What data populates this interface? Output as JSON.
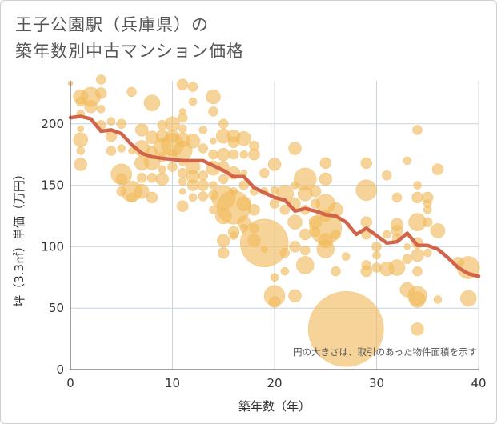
{
  "title": {
    "line1": "王子公園駅（兵庫県）の",
    "line2": "築年数別中古マンション価格"
  },
  "note": "円の大きさは、取引のあった物件面積を示す",
  "colors": {
    "bubble": "#f1b95a",
    "line": "#d2644a",
    "grid": "#c8d4de",
    "axis_text": "#333333"
  },
  "chart_data": {
    "type": "scatter",
    "xlabel": "築年数（年）",
    "ylabel": "坪（3.3㎡）単価（万円）",
    "xlim": [
      0,
      40
    ],
    "ylim": [
      0,
      235
    ],
    "xticks": [
      0,
      10,
      20,
      30,
      40
    ],
    "yticks": [
      0,
      50,
      100,
      150,
      200
    ],
    "grid": true,
    "trend": {
      "x": [
        0,
        1,
        2,
        3,
        4,
        5,
        6,
        7,
        8,
        9,
        10,
        11,
        12,
        13,
        14,
        15,
        16,
        17,
        18,
        19,
        20,
        21,
        22,
        23,
        24,
        25,
        26,
        27,
        28,
        29,
        30,
        31,
        32,
        33,
        34,
        35,
        36,
        37,
        38,
        39,
        40
      ],
      "y": [
        205,
        206,
        204,
        194,
        195,
        192,
        183,
        176,
        173,
        172,
        171,
        170,
        170,
        170,
        166,
        162,
        157,
        157,
        148,
        144,
        140,
        138,
        129,
        131,
        129,
        126,
        125,
        120,
        110,
        115,
        109,
        103,
        104,
        111,
        101,
        101,
        98,
        91,
        83,
        78,
        76
      ]
    },
    "bubbles": [
      {
        "x": 0,
        "y": 233,
        "s": 3
      },
      {
        "x": 1,
        "y": 222,
        "s": 9
      },
      {
        "x": 1,
        "y": 218,
        "s": 6
      },
      {
        "x": 1,
        "y": 208,
        "s": 5
      },
      {
        "x": 1,
        "y": 196,
        "s": 4
      },
      {
        "x": 1,
        "y": 187,
        "s": 9
      },
      {
        "x": 1,
        "y": 178,
        "s": 5
      },
      {
        "x": 1,
        "y": 167,
        "s": 8
      },
      {
        "x": 2,
        "y": 222,
        "s": 12
      },
      {
        "x": 2,
        "y": 214,
        "s": 8
      },
      {
        "x": 3,
        "y": 236,
        "s": 6
      },
      {
        "x": 3,
        "y": 225,
        "s": 7
      },
      {
        "x": 3,
        "y": 212,
        "s": 5
      },
      {
        "x": 3,
        "y": 199,
        "s": 6
      },
      {
        "x": 4,
        "y": 202,
        "s": 5
      },
      {
        "x": 4,
        "y": 190,
        "s": 7
      },
      {
        "x": 4,
        "y": 178,
        "s": 6
      },
      {
        "x": 5,
        "y": 200,
        "s": 6
      },
      {
        "x": 5,
        "y": 180,
        "s": 5
      },
      {
        "x": 5,
        "y": 159,
        "s": 13
      },
      {
        "x": 5,
        "y": 155,
        "s": 7
      },
      {
        "x": 5,
        "y": 145,
        "s": 6
      },
      {
        "x": 6,
        "y": 226,
        "s": 6
      },
      {
        "x": 6,
        "y": 178,
        "s": 4
      },
      {
        "x": 6,
        "y": 145,
        "s": 13
      },
      {
        "x": 6,
        "y": 140,
        "s": 6
      },
      {
        "x": 7,
        "y": 195,
        "s": 8
      },
      {
        "x": 7,
        "y": 180,
        "s": 10
      },
      {
        "x": 7,
        "y": 168,
        "s": 9
      },
      {
        "x": 7,
        "y": 156,
        "s": 6
      },
      {
        "x": 7,
        "y": 145,
        "s": 9
      },
      {
        "x": 8,
        "y": 217,
        "s": 10
      },
      {
        "x": 8,
        "y": 189,
        "s": 8
      },
      {
        "x": 8,
        "y": 177,
        "s": 7
      },
      {
        "x": 8,
        "y": 169,
        "s": 10
      },
      {
        "x": 8,
        "y": 156,
        "s": 6
      },
      {
        "x": 8,
        "y": 140,
        "s": 7
      },
      {
        "x": 9,
        "y": 199,
        "s": 6
      },
      {
        "x": 9,
        "y": 190,
        "s": 8
      },
      {
        "x": 9,
        "y": 181,
        "s": 11
      },
      {
        "x": 9,
        "y": 173,
        "s": 6
      },
      {
        "x": 9,
        "y": 163,
        "s": 5
      },
      {
        "x": 9,
        "y": 155,
        "s": 8
      },
      {
        "x": 10,
        "y": 200,
        "s": 9
      },
      {
        "x": 10,
        "y": 190,
        "s": 8
      },
      {
        "x": 10,
        "y": 183,
        "s": 14
      },
      {
        "x": 10,
        "y": 175,
        "s": 6
      },
      {
        "x": 10,
        "y": 165,
        "s": 6
      },
      {
        "x": 11,
        "y": 232,
        "s": 7
      },
      {
        "x": 11,
        "y": 210,
        "s": 4
      },
      {
        "x": 11,
        "y": 205,
        "s": 6
      },
      {
        "x": 11,
        "y": 196,
        "s": 5
      },
      {
        "x": 11,
        "y": 187,
        "s": 9
      },
      {
        "x": 11,
        "y": 178,
        "s": 12
      },
      {
        "x": 11,
        "y": 169,
        "s": 5
      },
      {
        "x": 11,
        "y": 160,
        "s": 6
      },
      {
        "x": 11,
        "y": 153,
        "s": 5
      },
      {
        "x": 11,
        "y": 145,
        "s": 4
      },
      {
        "x": 11,
        "y": 133,
        "s": 7
      },
      {
        "x": 12,
        "y": 230,
        "s": 6
      },
      {
        "x": 12,
        "y": 218,
        "s": 5
      },
      {
        "x": 12,
        "y": 186,
        "s": 9
      },
      {
        "x": 12,
        "y": 165,
        "s": 9
      },
      {
        "x": 12,
        "y": 157,
        "s": 8
      },
      {
        "x": 12,
        "y": 150,
        "s": 7
      },
      {
        "x": 12,
        "y": 140,
        "s": 5
      },
      {
        "x": 13,
        "y": 195,
        "s": 5
      },
      {
        "x": 13,
        "y": 180,
        "s": 6
      },
      {
        "x": 13,
        "y": 158,
        "s": 6
      },
      {
        "x": 13,
        "y": 150,
        "s": 7
      },
      {
        "x": 13,
        "y": 141,
        "s": 6
      },
      {
        "x": 14,
        "y": 222,
        "s": 9
      },
      {
        "x": 14,
        "y": 210,
        "s": 6
      },
      {
        "x": 14,
        "y": 186,
        "s": 4
      },
      {
        "x": 14,
        "y": 175,
        "s": 6
      },
      {
        "x": 14,
        "y": 164,
        "s": 9
      },
      {
        "x": 14,
        "y": 150,
        "s": 5
      },
      {
        "x": 14,
        "y": 142,
        "s": 6
      },
      {
        "x": 14,
        "y": 130,
        "s": 5
      },
      {
        "x": 15,
        "y": 200,
        "s": 6
      },
      {
        "x": 15,
        "y": 190,
        "s": 9
      },
      {
        "x": 15,
        "y": 175,
        "s": 8
      },
      {
        "x": 15,
        "y": 165,
        "s": 7
      },
      {
        "x": 15,
        "y": 155,
        "s": 6
      },
      {
        "x": 15,
        "y": 140,
        "s": 15
      },
      {
        "x": 15,
        "y": 125,
        "s": 10
      },
      {
        "x": 15,
        "y": 105,
        "s": 8
      },
      {
        "x": 15,
        "y": 95,
        "s": 7
      },
      {
        "x": 16,
        "y": 190,
        "s": 8
      },
      {
        "x": 16,
        "y": 185,
        "s": 7
      },
      {
        "x": 16,
        "y": 175,
        "s": 6
      },
      {
        "x": 16,
        "y": 160,
        "s": 8
      },
      {
        "x": 16,
        "y": 145,
        "s": 5
      },
      {
        "x": 16,
        "y": 132,
        "s": 21
      },
      {
        "x": 16,
        "y": 112,
        "s": 7
      },
      {
        "x": 16,
        "y": 109,
        "s": 5
      },
      {
        "x": 17,
        "y": 188,
        "s": 9
      },
      {
        "x": 17,
        "y": 175,
        "s": 5
      },
      {
        "x": 17,
        "y": 160,
        "s": 4
      },
      {
        "x": 17,
        "y": 150,
        "s": 6
      },
      {
        "x": 17,
        "y": 135,
        "s": 9
      },
      {
        "x": 17,
        "y": 120,
        "s": 8
      },
      {
        "x": 17,
        "y": 115,
        "s": 5
      },
      {
        "x": 18,
        "y": 182,
        "s": 6
      },
      {
        "x": 18,
        "y": 175,
        "s": 7
      },
      {
        "x": 18,
        "y": 145,
        "s": 5
      },
      {
        "x": 18,
        "y": 130,
        "s": 7
      },
      {
        "x": 18,
        "y": 115,
        "s": 6
      },
      {
        "x": 18,
        "y": 105,
        "s": 8
      },
      {
        "x": 19,
        "y": 160,
        "s": 6
      },
      {
        "x": 19,
        "y": 145,
        "s": 5
      },
      {
        "x": 19,
        "y": 103,
        "s": 30
      },
      {
        "x": 19,
        "y": 98,
        "s": 4
      },
      {
        "x": 20,
        "y": 167,
        "s": 8
      },
      {
        "x": 20,
        "y": 146,
        "s": 5
      },
      {
        "x": 20,
        "y": 135,
        "s": 6
      },
      {
        "x": 20,
        "y": 75,
        "s": 5
      },
      {
        "x": 20,
        "y": 60,
        "s": 13
      },
      {
        "x": 20,
        "y": 55,
        "s": 7
      },
      {
        "x": 21,
        "y": 143,
        "s": 11
      },
      {
        "x": 21,
        "y": 130,
        "s": 6
      },
      {
        "x": 21,
        "y": 95,
        "s": 6
      },
      {
        "x": 21,
        "y": 80,
        "s": 5
      },
      {
        "x": 22,
        "y": 180,
        "s": 8
      },
      {
        "x": 22,
        "y": 150,
        "s": 5
      },
      {
        "x": 22,
        "y": 135,
        "s": 7
      },
      {
        "x": 22,
        "y": 120,
        "s": 9
      },
      {
        "x": 22,
        "y": 100,
        "s": 7
      },
      {
        "x": 22,
        "y": 60,
        "s": 8
      },
      {
        "x": 23,
        "y": 155,
        "s": 14
      },
      {
        "x": 23,
        "y": 143,
        "s": 9
      },
      {
        "x": 23,
        "y": 130,
        "s": 6
      },
      {
        "x": 23,
        "y": 110,
        "s": 7
      },
      {
        "x": 23,
        "y": 97,
        "s": 6
      },
      {
        "x": 23,
        "y": 85,
        "s": 11
      },
      {
        "x": 24,
        "y": 145,
        "s": 7
      },
      {
        "x": 24,
        "y": 135,
        "s": 6
      },
      {
        "x": 24,
        "y": 120,
        "s": 8
      },
      {
        "x": 24,
        "y": 112,
        "s": 6
      },
      {
        "x": 25,
        "y": 168,
        "s": 7
      },
      {
        "x": 25,
        "y": 155,
        "s": 8
      },
      {
        "x": 25,
        "y": 135,
        "s": 12
      },
      {
        "x": 25,
        "y": 125,
        "s": 7
      },
      {
        "x": 25,
        "y": 115,
        "s": 20
      },
      {
        "x": 25,
        "y": 105,
        "s": 9
      },
      {
        "x": 25,
        "y": 98,
        "s": 11
      },
      {
        "x": 26,
        "y": 130,
        "s": 9
      },
      {
        "x": 26,
        "y": 110,
        "s": 6
      },
      {
        "x": 26,
        "y": 80,
        "s": 6
      },
      {
        "x": 27,
        "y": 33,
        "s": 47
      },
      {
        "x": 27,
        "y": 92,
        "s": 5
      },
      {
        "x": 29,
        "y": 168,
        "s": 7
      },
      {
        "x": 29,
        "y": 146,
        "s": 13
      },
      {
        "x": 29,
        "y": 120,
        "s": 7
      },
      {
        "x": 29,
        "y": 110,
        "s": 6
      },
      {
        "x": 29,
        "y": 85,
        "s": 6
      },
      {
        "x": 29,
        "y": 80,
        "s": 7
      },
      {
        "x": 30,
        "y": 100,
        "s": 6
      },
      {
        "x": 30,
        "y": 93,
        "s": 5
      },
      {
        "x": 30,
        "y": 83,
        "s": 6
      },
      {
        "x": 31,
        "y": 158,
        "s": 6
      },
      {
        "x": 31,
        "y": 110,
        "s": 5
      },
      {
        "x": 31,
        "y": 82,
        "s": 9
      },
      {
        "x": 32,
        "y": 140,
        "s": 6
      },
      {
        "x": 32,
        "y": 118,
        "s": 8
      },
      {
        "x": 32,
        "y": 113,
        "s": 7
      },
      {
        "x": 32,
        "y": 107,
        "s": 6
      },
      {
        "x": 32,
        "y": 83,
        "s": 10
      },
      {
        "x": 33,
        "y": 170,
        "s": 5
      },
      {
        "x": 33,
        "y": 100,
        "s": 4
      },
      {
        "x": 33,
        "y": 90,
        "s": 6
      },
      {
        "x": 33,
        "y": 65,
        "s": 9
      },
      {
        "x": 34,
        "y": 195,
        "s": 6
      },
      {
        "x": 34,
        "y": 150,
        "s": 5
      },
      {
        "x": 34,
        "y": 140,
        "s": 7
      },
      {
        "x": 34,
        "y": 120,
        "s": 11
      },
      {
        "x": 34,
        "y": 103,
        "s": 7
      },
      {
        "x": 34,
        "y": 93,
        "s": 8
      },
      {
        "x": 34,
        "y": 80,
        "s": 6
      },
      {
        "x": 34,
        "y": 60,
        "s": 12
      },
      {
        "x": 34,
        "y": 57,
        "s": 10
      },
      {
        "x": 34,
        "y": 33,
        "s": 8
      },
      {
        "x": 35,
        "y": 140,
        "s": 7
      },
      {
        "x": 35,
        "y": 135,
        "s": 5
      },
      {
        "x": 35,
        "y": 130,
        "s": 5
      },
      {
        "x": 35,
        "y": 120,
        "s": 6
      },
      {
        "x": 35,
        "y": 95,
        "s": 5
      },
      {
        "x": 36,
        "y": 163,
        "s": 7
      },
      {
        "x": 36,
        "y": 113,
        "s": 9
      },
      {
        "x": 36,
        "y": 57,
        "s": 5
      },
      {
        "x": 38,
        "y": 87,
        "s": 7
      },
      {
        "x": 39,
        "y": 83,
        "s": 14
      },
      {
        "x": 39,
        "y": 58,
        "s": 10
      }
    ]
  }
}
